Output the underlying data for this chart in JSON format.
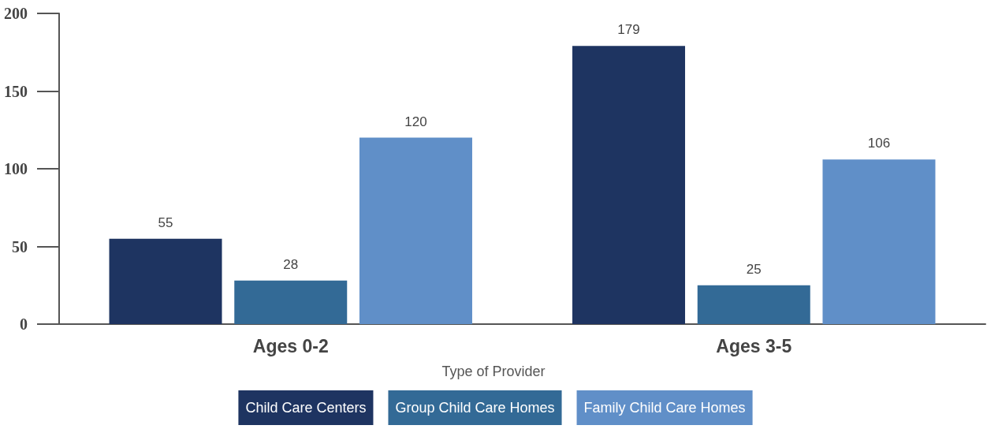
{
  "chart_data": {
    "type": "bar",
    "legend_title": "Type of Provider",
    "categories": [
      "Ages 0-2",
      "Ages 3-5"
    ],
    "series": [
      {
        "name": "Child Care Centers",
        "color": "#1e3461",
        "values": [
          55,
          179
        ]
      },
      {
        "name": "Group Child Care Homes",
        "color": "#336a96",
        "values": [
          28,
          25
        ]
      },
      {
        "name": "Family Child Care Homes",
        "color": "#608fc8",
        "values": [
          120,
          106
        ]
      }
    ],
    "ylim": [
      0,
      200
    ],
    "yticks": [
      0,
      50,
      100,
      150,
      200
    ],
    "grid": false,
    "legend": "bottom",
    "data_labels": true
  }
}
